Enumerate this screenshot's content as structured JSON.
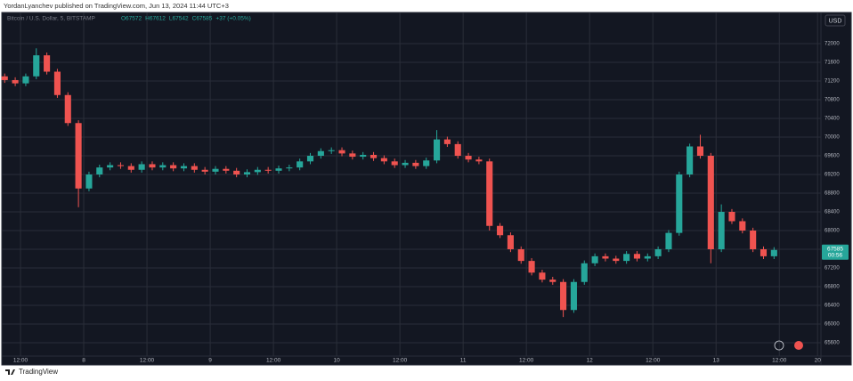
{
  "header": "YordanLyanchev published on TradingView.com, Jun 13, 2024 11:44 UTC+3",
  "footer": "TradingView",
  "chart_data": {
    "type": "candlestick",
    "symbol": "Bitcoin / U.S. Dollar, 5, BITSTAMP",
    "ohlc_legend": [
      "O67572",
      "H67612",
      "L67542",
      "C67585",
      "+37 (+0.05%)"
    ],
    "currency": "USD",
    "countdown": "00:56",
    "up_color": "#26a69a",
    "down_color": "#ef5350",
    "grid": true,
    "x": [
      9,
      11,
      13,
      15,
      17,
      19,
      21,
      23,
      25,
      27,
      29,
      31,
      33,
      35,
      37,
      39,
      41,
      43,
      45,
      47,
      49,
      51,
      53,
      55,
      57,
      59,
      61,
      63,
      65,
      67,
      69,
      71,
      73,
      75,
      77,
      79,
      81,
      83,
      85,
      87,
      89,
      91,
      93,
      95,
      97,
      99,
      101,
      103,
      105,
      107,
      109,
      111,
      113,
      115,
      117,
      119,
      121,
      123,
      125,
      127,
      129,
      131,
      133,
      135,
      137,
      139,
      141,
      143,
      145,
      147,
      149,
      151,
      153,
      155
    ],
    "open": [
      71300,
      71220,
      71150,
      71300,
      71750,
      71400,
      70900,
      70300,
      68900,
      69200,
      69350,
      69400,
      69380,
      69300,
      69420,
      69350,
      69400,
      69330,
      69380,
      69300,
      69260,
      69320,
      69280,
      69200,
      69250,
      69300,
      69280,
      69330,
      69350,
      69480,
      69600,
      69700,
      69720,
      69650,
      69580,
      69620,
      69550,
      69480,
      69400,
      69450,
      69380,
      69500,
      69950,
      69850,
      69600,
      69520,
      69480,
      68100,
      67900,
      67600,
      67350,
      67100,
      66950,
      66900,
      66300,
      66900,
      67300,
      67450,
      67400,
      67350,
      67500,
      67400,
      67450,
      67600,
      67950,
      69200,
      69800,
      69600,
      67600,
      68400,
      68200,
      68000,
      67600,
      67450
    ],
    "high": [
      71360,
      71280,
      71360,
      71900,
      71810,
      71460,
      70960,
      70360,
      69260,
      69410,
      69460,
      69460,
      69440,
      69480,
      69480,
      69460,
      69460,
      69440,
      69440,
      69360,
      69380,
      69380,
      69340,
      69310,
      69360,
      69360,
      69390,
      69410,
      69540,
      69660,
      69760,
      69780,
      69780,
      69710,
      69680,
      69680,
      69610,
      69540,
      69510,
      69510,
      69560,
      70150,
      70010,
      69910,
      69660,
      69580,
      69540,
      68160,
      67960,
      67660,
      67410,
      67160,
      67010,
      66960,
      66960,
      67360,
      67510,
      67510,
      67460,
      67560,
      67560,
      67510,
      67660,
      68010,
      69260,
      69860,
      70050,
      69660,
      68560,
      68460,
      68260,
      68060,
      67660,
      67645
    ],
    "low": [
      71160,
      71090,
      71090,
      71240,
      71340,
      70840,
      70240,
      68500,
      68840,
      69140,
      69290,
      69320,
      69240,
      69240,
      69290,
      69290,
      69270,
      69270,
      69240,
      69200,
      69200,
      69220,
      69140,
      69140,
      69190,
      69220,
      69220,
      69270,
      69290,
      69420,
      69540,
      69640,
      69590,
      69520,
      69520,
      69490,
      69420,
      69340,
      69340,
      69320,
      69320,
      69440,
      69790,
      69540,
      69460,
      69420,
      68000,
      67840,
      67540,
      67290,
      67040,
      66890,
      66840,
      66150,
      66240,
      66840,
      67240,
      67340,
      67290,
      67290,
      67340,
      67340,
      67390,
      67540,
      67890,
      69140,
      69540,
      67300,
      67540,
      68140,
      67940,
      67540,
      67390,
      67390
    ],
    "close": [
      71220,
      71150,
      71300,
      71750,
      71400,
      70900,
      70300,
      68900,
      69200,
      69350,
      69400,
      69380,
      69300,
      69420,
      69350,
      69400,
      69330,
      69380,
      69300,
      69260,
      69320,
      69280,
      69200,
      69250,
      69300,
      69280,
      69330,
      69350,
      69480,
      69600,
      69700,
      69720,
      69650,
      69580,
      69620,
      69550,
      69480,
      69400,
      69450,
      69380,
      69500,
      69950,
      69850,
      69600,
      69520,
      69480,
      68100,
      67900,
      67600,
      67350,
      67100,
      66950,
      66900,
      66300,
      66900,
      67300,
      67450,
      67400,
      67350,
      67500,
      67400,
      67450,
      67600,
      67950,
      69200,
      69800,
      69600,
      67600,
      68400,
      68200,
      68000,
      67600,
      67450,
      67585
    ],
    "xlim": [
      8.45,
      163.9
    ],
    "xticks": [
      {
        "value": 12,
        "label": "12:00"
      },
      {
        "value": 24,
        "label": "8"
      },
      {
        "value": 36,
        "label": "12:00"
      },
      {
        "value": 48,
        "label": "9"
      },
      {
        "value": 60,
        "label": "12:00"
      },
      {
        "value": 72,
        "label": "10"
      },
      {
        "value": 84,
        "label": "12:00"
      },
      {
        "value": 96,
        "label": "11"
      },
      {
        "value": 108,
        "label": "12:00"
      },
      {
        "value": 120,
        "label": "12"
      },
      {
        "value": 132,
        "label": "12:00"
      },
      {
        "value": 144,
        "label": "13"
      },
      {
        "value": 156,
        "label": "12:00"
      },
      {
        "value": 163.26,
        "label": "20"
      }
    ],
    "ylim": [
      65314,
      72648
    ],
    "yticks": [
      65600,
      66000,
      66400,
      66800,
      67200,
      67600,
      68000,
      68400,
      68800,
      69200,
      69600,
      70000,
      70400,
      70800,
      71200,
      71600,
      72000
    ]
  }
}
